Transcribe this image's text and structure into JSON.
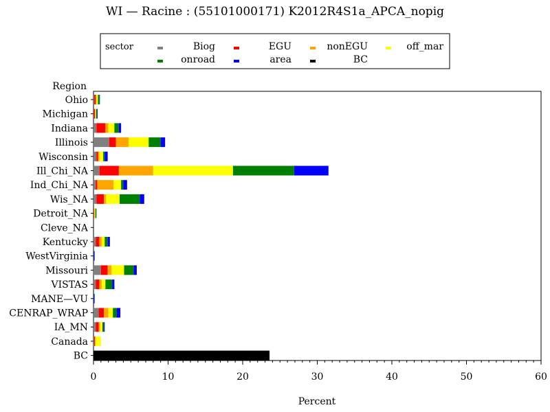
{
  "chart_data": {
    "type": "bar",
    "orientation": "horizontal",
    "stacked": true,
    "title": "WI  —  Racine : (55101000171) K2012R4S1a_APCA_nopig",
    "xlabel": "Percent",
    "ylabel": "Region",
    "xlim": [
      0,
      60
    ],
    "xticks": [
      0,
      10,
      20,
      30,
      40,
      50,
      60
    ],
    "grid": false,
    "legend_title": "sector",
    "legend_position": "top-center",
    "categories": [
      "Ohio",
      "Michigan",
      "Indiana",
      "Illinois",
      "Wisconsin",
      "Ill_Chi_NA",
      "Ind_Chi_NA",
      "Wis_NA",
      "Detroit_NA",
      "Cleve_NA",
      "Kentucky",
      "WestVirginia",
      "Missouri",
      "VISTAS",
      "MANE—VU",
      "CENRAP_WRAP",
      "IA_MN",
      "Canada",
      "BC"
    ],
    "series": [
      {
        "name": "Biog",
        "color": "#808080",
        "values": [
          0.1,
          0.05,
          0.4,
          2.1,
          0.4,
          0.8,
          0.3,
          0.4,
          0.05,
          0,
          0.3,
          0,
          1.0,
          0.3,
          0,
          0.7,
          0.3,
          0.1,
          0
        ]
      },
      {
        "name": "EGU",
        "color": "#ff0000",
        "values": [
          0.2,
          0.15,
          1.2,
          0.9,
          0.2,
          2.6,
          0.2,
          1.0,
          0.05,
          0,
          0.5,
          0,
          0.9,
          0.5,
          0,
          0.7,
          0.4,
          0.1,
          0
        ]
      },
      {
        "name": "nonEGU",
        "color": "#ffa500",
        "values": [
          0.1,
          0.05,
          0.4,
          1.7,
          0.2,
          4.6,
          2.2,
          0.3,
          0.05,
          0,
          0.3,
          0,
          0.5,
          0.3,
          0,
          0.6,
          0.2,
          0.1,
          0
        ]
      },
      {
        "name": "off_mar",
        "color": "#ffff00",
        "values": [
          0.2,
          0.1,
          0.8,
          2.7,
          0.5,
          10.7,
          1.0,
          1.8,
          0.1,
          0,
          0.4,
          0,
          1.7,
          0.5,
          0,
          0.6,
          0.3,
          0.7,
          0
        ]
      },
      {
        "name": "onroad",
        "color": "#008000",
        "values": [
          0.2,
          0.15,
          0.6,
          1.6,
          0.2,
          8.2,
          0.3,
          2.7,
          0.15,
          0,
          0.4,
          0.05,
          1.3,
          0.9,
          0.05,
          0.5,
          0.2,
          0,
          0
        ]
      },
      {
        "name": "area",
        "color": "#0000ff",
        "values": [
          0.05,
          0.05,
          0.3,
          0.6,
          0.4,
          4.6,
          0.5,
          0.6,
          0,
          0,
          0.3,
          0.1,
          0.4,
          0.3,
          0.1,
          0.5,
          0.1,
          0,
          0
        ]
      },
      {
        "name": "BC",
        "color": "#000000",
        "values": [
          0,
          0,
          0,
          0,
          0,
          0,
          0,
          0,
          0,
          0,
          0,
          0,
          0,
          0,
          0,
          0,
          0,
          0,
          23.6
        ]
      }
    ]
  }
}
